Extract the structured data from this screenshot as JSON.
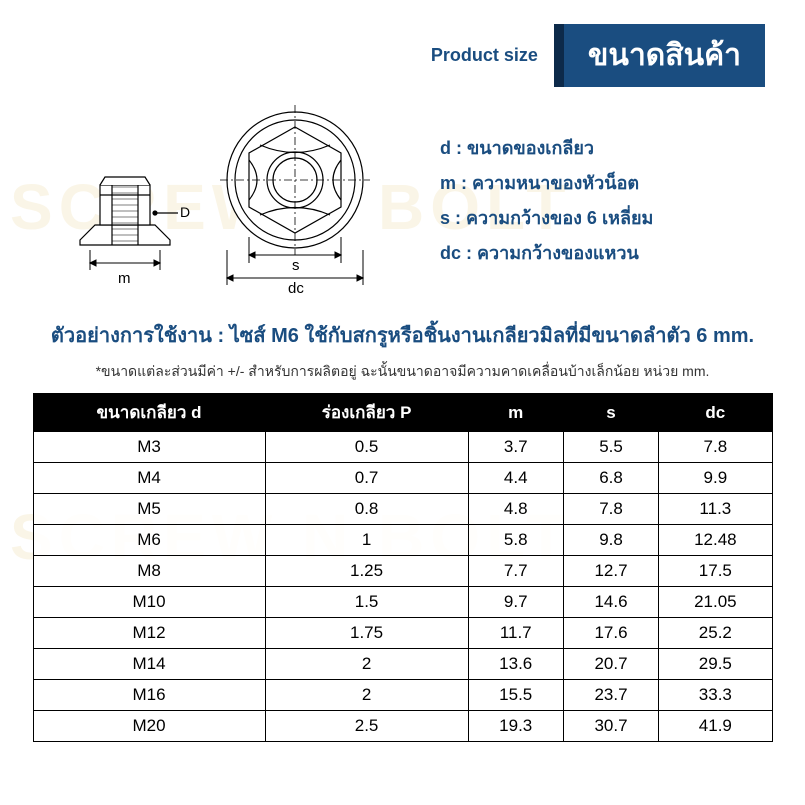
{
  "header": {
    "product_size_en": "Product size",
    "title_th": "ขนาดสินค้า"
  },
  "watermark_text": "SCREW N BOLT",
  "diagram": {
    "label_D": "D",
    "label_m": "m",
    "label_s": "s",
    "label_dc": "dc",
    "stroke": "#000000",
    "fill": "#ffffff"
  },
  "legend": {
    "d": "d :  ขนาดของเกลียว",
    "m": "m : ความหนาของหัวน็อต",
    "s": "s :  ความกว้างของ 6 เหลี่ยม",
    "dc": "dc : ความกว้างของแหวน"
  },
  "usage_text": "ตัวอย่างการใช้งาน : ไซส์ M6 ใช้กับสกรูหรือชิ้นงานเกลียวมิลที่มีขนาดลำตัว 6 mm.",
  "note_text": "*ขนาดแต่ละส่วนมีค่า +/- สำหรับการผลิตอยู่ ฉะนั้นขนาดอาจมีความคาดเคลื่อนบ้างเล็กน้อย หน่วย mm.",
  "table": {
    "headers": [
      "ขนาดเกลียว d",
      "ร่องเกลียว P",
      "m",
      "s",
      "dc"
    ],
    "rows": [
      [
        "M3",
        "0.5",
        "3.7",
        "5.5",
        "7.8"
      ],
      [
        "M4",
        "0.7",
        "4.4",
        "6.8",
        "9.9"
      ],
      [
        "M5",
        "0.8",
        "4.8",
        "7.8",
        "11.3"
      ],
      [
        "M6",
        "1",
        "5.8",
        "9.8",
        "12.48"
      ],
      [
        "M8",
        "1.25",
        "7.7",
        "12.7",
        "17.5"
      ],
      [
        "M10",
        "1.5",
        "9.7",
        "14.6",
        "21.05"
      ],
      [
        "M12",
        "1.75",
        "11.7",
        "17.6",
        "25.2"
      ],
      [
        "M14",
        "2",
        "13.6",
        "20.7",
        "29.5"
      ],
      [
        "M16",
        "2",
        "15.5",
        "23.7",
        "33.3"
      ],
      [
        "M20",
        "2.5",
        "19.3",
        "30.7",
        "41.9"
      ]
    ],
    "header_bg": "#000000",
    "header_fg": "#ffffff",
    "border_color": "#000000",
    "cell_bg": "#ffffff"
  },
  "colors": {
    "brand_blue": "#1a4d80",
    "brand_dark": "#0d2a4a",
    "watermark": "rgba(230,200,120,0.18)"
  }
}
